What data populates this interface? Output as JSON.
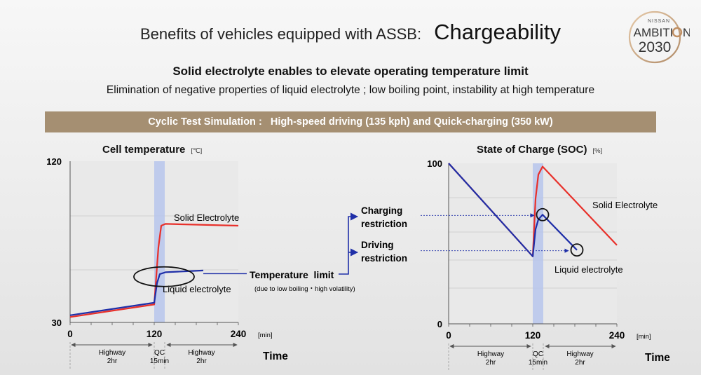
{
  "header": {
    "title": "Benefits of vehicles equipped with ASSB:",
    "title_accent": "Chargeability",
    "logo": {
      "brand": "NISSAN",
      "line1": "AMBITI",
      "line1_end": "N",
      "line2": "2030"
    }
  },
  "headline": "Solid electrolyte enables to elevate operating temperature limit",
  "subline": "Elimination of negative properties of liquid electrolyte ; low boiling point, instability at high temperature",
  "banner": "Cyclic Test Simulation :   High-speed driving (135 kph) and Quick-charging (350 kW)",
  "callouts": {
    "charging_restriction": [
      "Charging",
      "restriction"
    ],
    "driving_restriction": [
      "Driving",
      "restriction"
    ],
    "temp_limit": "Temperature  limit",
    "temp_limit_note": "(due to low boiling・high volatility)"
  },
  "colors": {
    "solid": "#e8302a",
    "liquid": "#1f2fa8",
    "banner": "#a58f72",
    "qc_band": "#b7c6ec"
  },
  "chart_data": [
    {
      "type": "line",
      "title": "Cell temperature",
      "unit": "[℃]",
      "xlabel": "Time",
      "xunit": "[min]",
      "x_ticks": [
        0,
        120,
        240
      ],
      "xlim": [
        0,
        240
      ],
      "y_ticks": [
        30,
        120
      ],
      "ylim": [
        30,
        120
      ],
      "qc_band": [
        120,
        135
      ],
      "phases": [
        {
          "from": 0,
          "to": 120,
          "label": [
            "Highway",
            "2hr"
          ]
        },
        {
          "from": 120,
          "to": 135,
          "label": [
            "QC",
            "15min"
          ]
        },
        {
          "from": 135,
          "to": 240,
          "label": [
            "Highway",
            "2hr"
          ]
        }
      ],
      "temperature_limit": 58,
      "series": [
        {
          "name": "Solid Electrolyte",
          "color": "#e8302a",
          "x": [
            0,
            120,
            126,
            130,
            136,
            240
          ],
          "y": [
            33,
            40,
            72,
            84,
            85,
            84
          ]
        },
        {
          "name": "Liquid electrolyte",
          "color": "#1f2fa8",
          "x": [
            0,
            120,
            124,
            128,
            136,
            190
          ],
          "y": [
            34,
            41,
            52,
            57,
            58,
            59
          ]
        }
      ],
      "annotations": [
        {
          "type": "circle",
          "x": 142,
          "y": 57.5
        }
      ]
    },
    {
      "type": "line",
      "title": "State of Charge (SOC)",
      "unit": "[%]",
      "xlabel": "Time",
      "xunit": "[min]",
      "x_ticks": [
        0,
        120,
        240
      ],
      "xlim": [
        0,
        240
      ],
      "y_ticks": [
        0,
        100
      ],
      "ylim": [
        0,
        100
      ],
      "qc_band": [
        120,
        135
      ],
      "phases": [
        {
          "from": 0,
          "to": 120,
          "label": [
            "Highway",
            "2hr"
          ]
        },
        {
          "from": 120,
          "to": 135,
          "label": [
            "QC",
            "15min"
          ]
        },
        {
          "from": 135,
          "to": 240,
          "label": [
            "Highway",
            "2hr"
          ]
        }
      ],
      "series": [
        {
          "name": "Solid Electrolyte",
          "color": "#e8302a",
          "x": [
            0,
            120,
            124,
            128,
            134,
            240
          ],
          "y": [
            100,
            42,
            78,
            93,
            98,
            49
          ]
        },
        {
          "name": "Liquid electrolyte",
          "color": "#1f2fa8",
          "x": [
            0,
            120,
            124,
            128,
            134,
            183
          ],
          "y": [
            100,
            42,
            59,
            65,
            68,
            46
          ]
        }
      ],
      "annotations": [
        {
          "type": "circle",
          "x": 134,
          "y": 68,
          "arrow_label": "charging"
        },
        {
          "type": "circle",
          "x": 183,
          "y": 46,
          "arrow_label": "driving"
        }
      ]
    }
  ]
}
